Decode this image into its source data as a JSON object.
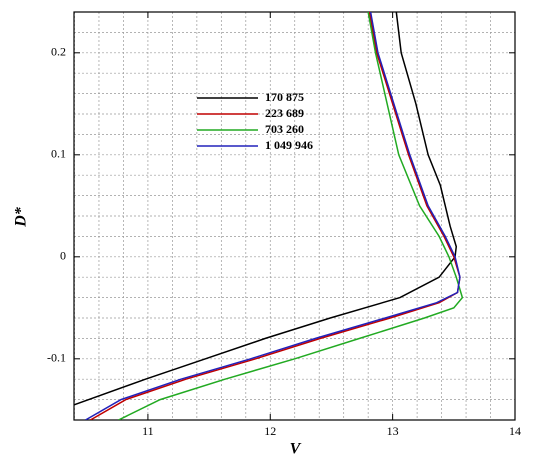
{
  "chart_data": {
    "type": "line",
    "x_label": "V",
    "y_label": "D*",
    "xlim": [
      10.396,
      14
    ],
    "ylim": [
      -0.16,
      0.24
    ],
    "xticks": [
      11,
      12,
      13,
      14
    ],
    "yticks": [
      -0.1,
      0,
      0.1,
      0.2
    ],
    "grid": true,
    "grid_step_x": 0.2,
    "grid_step_y": 0.02,
    "series": [
      {
        "name": "170 875",
        "color": "#000000",
        "x": [
          13.03,
          13.07,
          13.19,
          13.29,
          13.39,
          13.47,
          13.52,
          13.51,
          13.38,
          13.06,
          12.49,
          11.96,
          11.47,
          10.98,
          10.4
        ],
        "y": [
          0.24,
          0.2,
          0.15,
          0.1,
          0.07,
          0.03,
          0.01,
          0,
          -0.02,
          -0.04,
          -0.06,
          -0.08,
          -0.1,
          -0.12,
          -0.145
        ]
      },
      {
        "name": "223 689",
        "color": "#c00000",
        "x": [
          12.81,
          12.87,
          13.13,
          13.28,
          13.42,
          13.5,
          13.55,
          13.53,
          13.38,
          12.98,
          12.41,
          11.88,
          11.31,
          10.82,
          10.53
        ],
        "y": [
          0.24,
          0.2,
          0.1,
          0.05,
          0.02,
          0,
          -0.02,
          -0.035,
          -0.045,
          -0.06,
          -0.08,
          -0.1,
          -0.12,
          -0.14,
          -0.16
        ]
      },
      {
        "name": "703 260",
        "color": "#22aa22",
        "x": [
          12.8,
          12.86,
          13.05,
          13.22,
          13.38,
          13.46,
          13.52,
          13.57,
          13.5,
          13.26,
          12.73,
          12.2,
          11.63,
          11.1,
          10.76
        ],
        "y": [
          0.24,
          0.2,
          0.1,
          0.05,
          0.02,
          0,
          -0.02,
          -0.04,
          -0.05,
          -0.06,
          -0.08,
          -0.1,
          -0.12,
          -0.14,
          -0.16
        ]
      },
      {
        "name": "1 049 946",
        "color": "#2222bb",
        "x": [
          12.82,
          12.88,
          13.14,
          13.29,
          13.43,
          13.51,
          13.55,
          13.53,
          13.36,
          12.94,
          12.37,
          11.84,
          11.27,
          10.78,
          10.49
        ],
        "y": [
          0.24,
          0.2,
          0.1,
          0.05,
          0.02,
          0,
          -0.02,
          -0.035,
          -0.045,
          -0.06,
          -0.08,
          -0.1,
          -0.12,
          -0.14,
          -0.16
        ]
      }
    ]
  }
}
